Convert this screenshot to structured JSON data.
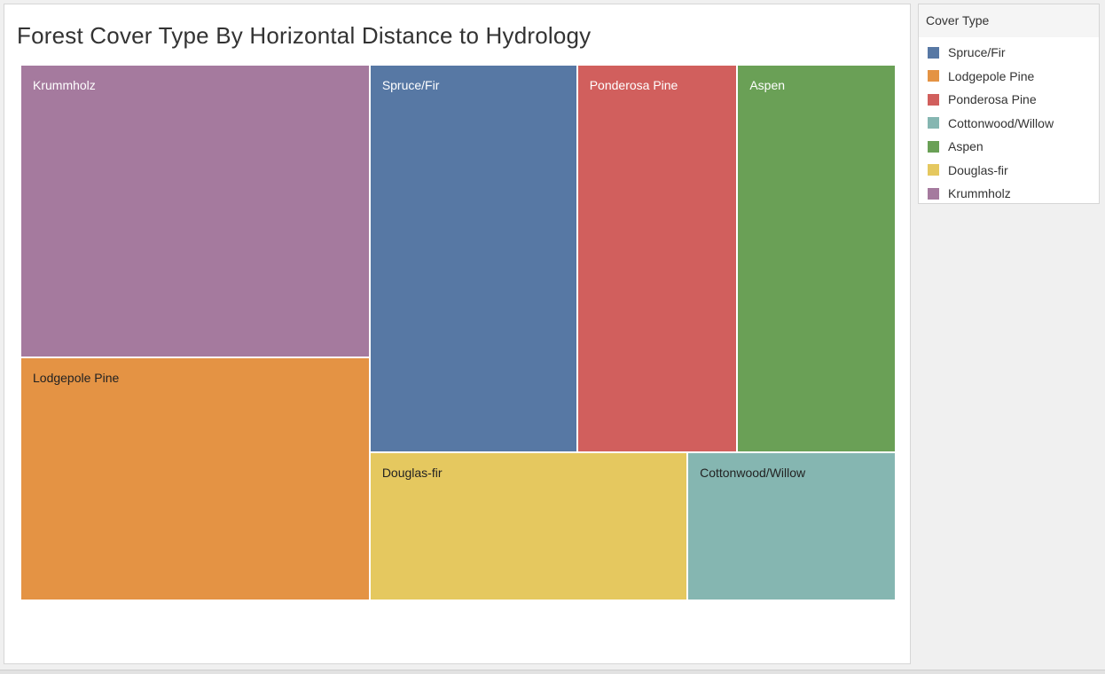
{
  "chart_data": {
    "type": "treemap",
    "title": "Forest Cover Type By Horizontal Distance to Hydrology",
    "items": [
      {
        "name": "Krummholz",
        "value": 21.2,
        "color": "#a57a9e",
        "label_color": "#ffffff"
      },
      {
        "name": "Lodgepole Pine",
        "value": 14.7,
        "color": "#e49344",
        "label_color": "#222222"
      },
      {
        "name": "Spruce/Fir",
        "value": 17.0,
        "color": "#5778a4",
        "label_color": "#ffffff"
      },
      {
        "name": "Ponderosa Pine",
        "value": 13.0,
        "color": "#d15f5d",
        "label_color": "#ffffff"
      },
      {
        "name": "Aspen",
        "value": 13.0,
        "color": "#6aa056",
        "label_color": "#ffffff"
      },
      {
        "name": "Douglas-fir",
        "value": 10.6,
        "color": "#e5c85f",
        "label_color": "#222222"
      },
      {
        "name": "Cottonwood/Willow",
        "value": 6.9,
        "color": "#85b6b1",
        "label_color": "#222222"
      }
    ]
  },
  "legend": {
    "title": "Cover Type",
    "entries": [
      {
        "label": "Spruce/Fir",
        "color": "#5778a4"
      },
      {
        "label": "Lodgepole Pine",
        "color": "#e49344"
      },
      {
        "label": "Ponderosa Pine",
        "color": "#d15f5d"
      },
      {
        "label": "Cottonwood/Willow",
        "color": "#85b6b1"
      },
      {
        "label": "Aspen",
        "color": "#6aa056"
      },
      {
        "label": "Douglas-fir",
        "color": "#e5c85f"
      },
      {
        "label": "Krummholz",
        "color": "#a57a9e"
      }
    ]
  }
}
